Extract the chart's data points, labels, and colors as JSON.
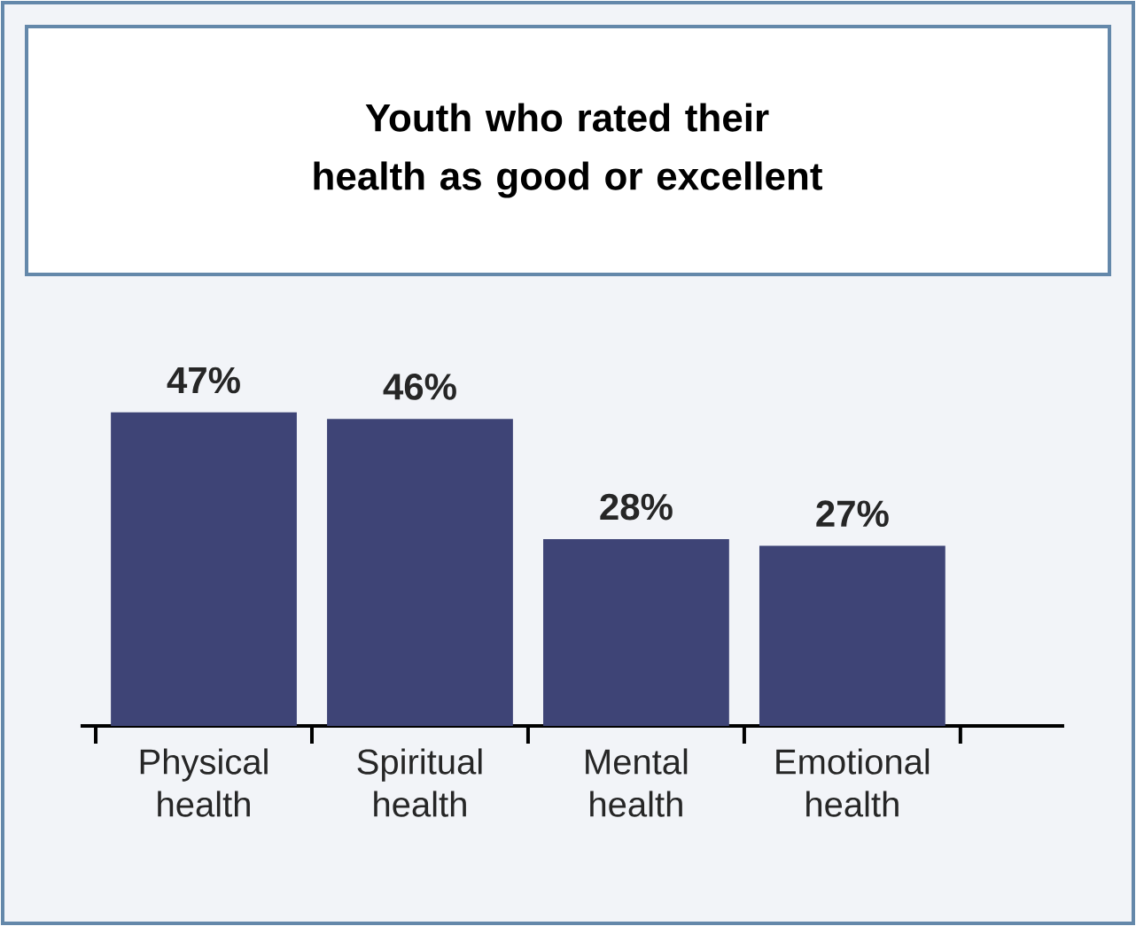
{
  "chart_data": {
    "type": "bar",
    "title": "Youth who rated their health as good or excellent",
    "categories": [
      "Physical health",
      "Spiritual health",
      "Mental health",
      "Emotional health"
    ],
    "values": [
      47,
      46,
      28,
      27
    ],
    "value_labels": [
      "47%",
      "46%",
      "28%",
      "27%"
    ],
    "color": "#3e4476"
  }
}
